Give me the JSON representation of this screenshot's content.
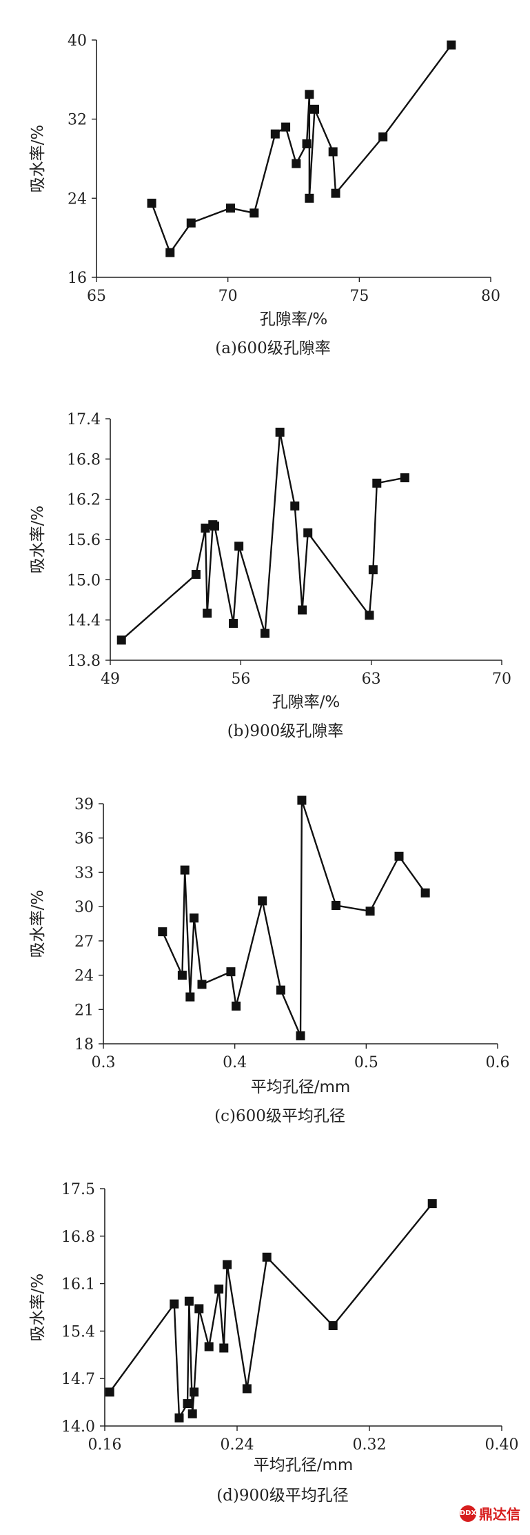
{
  "chart_data": [
    {
      "type": "line",
      "caption": "(a)600级孔隙率",
      "xlabel": "孔隙率/%",
      "ylabel": "吸水率/%",
      "xlim": [
        65,
        80
      ],
      "ylim": [
        16,
        40
      ],
      "xticks": [
        "65",
        "70",
        "75",
        "80"
      ],
      "yticks": [
        "16",
        "24",
        "32",
        "40"
      ],
      "x": [
        67.1,
        67.8,
        68.6,
        70.1,
        71.0,
        71.8,
        72.2,
        72.6,
        73.0,
        73.1,
        73.1,
        73.3,
        74.0,
        74.1,
        75.9,
        78.5
      ],
      "y": [
        23.5,
        18.5,
        21.5,
        23.0,
        22.5,
        30.5,
        31.2,
        27.5,
        29.5,
        34.5,
        24.0,
        33.0,
        28.7,
        24.5,
        30.2,
        39.5
      ]
    },
    {
      "type": "line",
      "caption": "(b)900级孔隙率",
      "xlabel": "孔隙率/%",
      "ylabel": "吸水率/%",
      "xlim": [
        49,
        70
      ],
      "ylim": [
        13.8,
        17.4
      ],
      "xticks": [
        "49",
        "56",
        "63",
        "70"
      ],
      "yticks": [
        "13.8",
        "14.4",
        "15.0",
        "15.6",
        "16.2",
        "16.8",
        "17.4"
      ],
      "x": [
        49.6,
        53.6,
        54.1,
        54.2,
        54.5,
        54.6,
        55.6,
        55.9,
        57.3,
        58.1,
        58.9,
        59.3,
        59.6,
        62.9,
        63.1,
        63.3,
        64.8
      ],
      "y": [
        14.1,
        15.08,
        15.77,
        14.5,
        15.82,
        15.8,
        14.35,
        15.5,
        14.2,
        17.2,
        16.1,
        14.55,
        15.7,
        14.47,
        15.15,
        16.44,
        16.52
      ]
    },
    {
      "type": "line",
      "caption": "(c)600级平均孔径",
      "xlabel": "平均孔径/mm",
      "ylabel": "吸水率/%",
      "xlim": [
        0.3,
        0.6
      ],
      "ylim": [
        18,
        39
      ],
      "xticks": [
        "0.3",
        "0.4",
        "0.5",
        "0.6"
      ],
      "yticks": [
        "18",
        "21",
        "24",
        "27",
        "30",
        "33",
        "36",
        "39"
      ],
      "x": [
        0.345,
        0.36,
        0.362,
        0.366,
        0.369,
        0.375,
        0.397,
        0.401,
        0.421,
        0.435,
        0.45,
        0.451,
        0.477,
        0.503,
        0.525,
        0.545
      ],
      "y": [
        27.8,
        24.0,
        33.2,
        22.1,
        29.0,
        23.2,
        24.3,
        21.3,
        30.5,
        22.7,
        18.7,
        39.3,
        30.1,
        29.6,
        34.4,
        31.2
      ]
    },
    {
      "type": "line",
      "caption": "(d)900级平均孔径",
      "xlabel": "平均孔径/mm",
      "ylabel": "吸水率/%",
      "xlim": [
        0.16,
        0.4
      ],
      "ylim": [
        14.0,
        17.5
      ],
      "xticks": [
        "0.16",
        "0.24",
        "0.32",
        "0.40"
      ],
      "yticks": [
        "14.0",
        "14.7",
        "15.4",
        "16.1",
        "16.8",
        "17.5"
      ],
      "x": [
        0.163,
        0.202,
        0.205,
        0.21,
        0.211,
        0.213,
        0.214,
        0.217,
        0.223,
        0.229,
        0.232,
        0.234,
        0.246,
        0.258,
        0.298,
        0.358
      ],
      "y": [
        14.5,
        15.8,
        14.12,
        14.33,
        15.84,
        14.18,
        14.5,
        15.73,
        15.17,
        16.02,
        15.15,
        16.38,
        14.55,
        16.49,
        15.48,
        17.28
      ]
    }
  ],
  "watermark": {
    "logo_text": "DDX",
    "text": "鼎达信"
  }
}
